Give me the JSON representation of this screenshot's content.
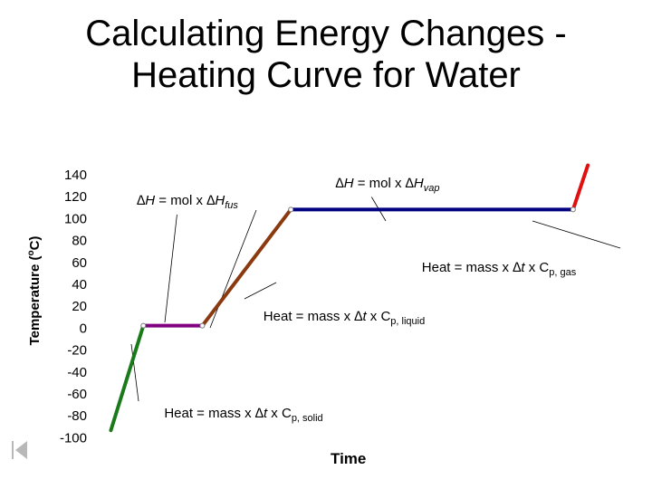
{
  "title_line1": "Calculating Energy Changes -",
  "title_line2": "Heating Curve for Water",
  "chart_data": {
    "type": "line",
    "title": "Calculating Energy Changes - Heating Curve for Water",
    "xlabel": "Time",
    "ylabel": "Temperature (oC)",
    "ylim": [
      -100,
      140
    ],
    "yticks": [
      "140",
      "120",
      "100",
      "80",
      "60",
      "40",
      "20",
      "0",
      "-20",
      "-40",
      "-60",
      "-80",
      "-100"
    ],
    "grid": false,
    "segments": [
      {
        "phase": "solid heating",
        "color": "#1a7a1a",
        "points": [
          [
            0.5,
            -90
          ],
          [
            3.8,
            0
          ]
        ]
      },
      {
        "phase": "melting",
        "color": "#800080",
        "points": [
          [
            3.8,
            0
          ],
          [
            9.8,
            0
          ]
        ]
      },
      {
        "phase": "liquid heating",
        "color": "#8b3a10",
        "points": [
          [
            9.8,
            0
          ],
          [
            18.8,
            100
          ]
        ]
      },
      {
        "phase": "vaporization",
        "color": "#000080",
        "points": [
          [
            18.8,
            100
          ],
          [
            47.5,
            100
          ]
        ]
      },
      {
        "phase": "gas heating",
        "color": "#e01010",
        "points": [
          [
            47.5,
            100
          ],
          [
            49.0,
            138
          ]
        ]
      }
    ],
    "annotations": [
      {
        "text": "∆H = mol x ∆Hfus",
        "parts": [
          [
            "∆",
            false,
            true
          ],
          [
            "H",
            false,
            true
          ],
          [
            " = mol x ",
            false,
            false
          ],
          [
            "∆",
            false,
            true
          ],
          [
            "H",
            false,
            true
          ],
          [
            "fus",
            true,
            true
          ]
        ]
      },
      {
        "text": "∆H = mol x ∆Hvap",
        "parts": [
          [
            "∆",
            false,
            true
          ],
          [
            "H",
            false,
            true
          ],
          [
            " = mol x ",
            false,
            false
          ],
          [
            "∆",
            false,
            true
          ],
          [
            "H",
            false,
            true
          ],
          [
            "vap",
            true,
            true
          ]
        ]
      },
      {
        "text": "Heat = mass x ∆t x Cp, gas",
        "parts": [
          [
            "Heat = mass x ",
            false,
            false
          ],
          [
            "∆",
            false,
            true
          ],
          [
            "t",
            false,
            true
          ],
          [
            " x C",
            false,
            false
          ],
          [
            "p, gas",
            true,
            false
          ]
        ]
      },
      {
        "text": "Heat = mass x ∆t x Cp, liquid",
        "parts": [
          [
            "Heat = mass x ",
            false,
            false
          ],
          [
            "∆",
            false,
            true
          ],
          [
            "t",
            false,
            true
          ],
          [
            " x C",
            false,
            false
          ],
          [
            "p, liquid",
            true,
            false
          ]
        ]
      },
      {
        "text": "Heat = mass x ∆t x Cp, solid",
        "parts": [
          [
            "Heat = mass x ",
            false,
            false
          ],
          [
            "∆",
            false,
            true
          ],
          [
            "t",
            false,
            true
          ],
          [
            " x C",
            false,
            false
          ],
          [
            "p, solid",
            true,
            false
          ]
        ]
      }
    ]
  },
  "nav_icon": "skip-to-start-icon"
}
